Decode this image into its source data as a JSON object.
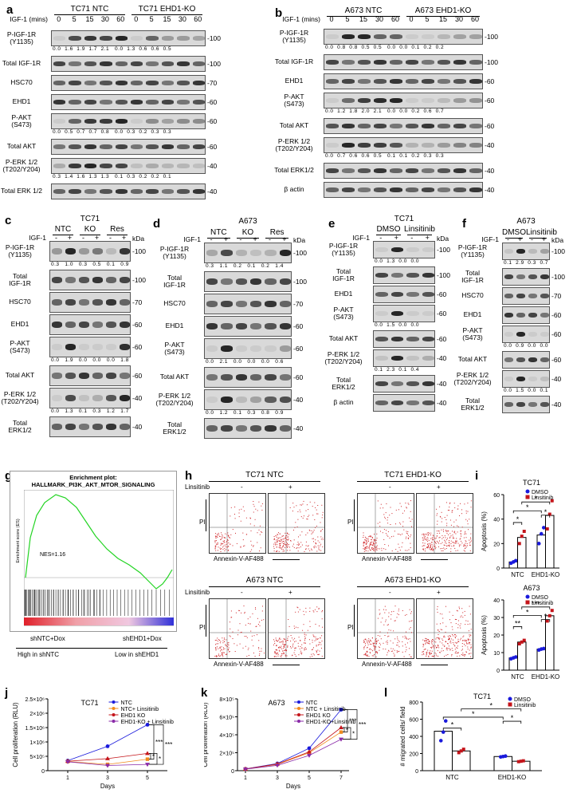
{
  "panel_letters": [
    "a",
    "b",
    "c",
    "d",
    "e",
    "f",
    "g",
    "h",
    "i",
    "j",
    "k",
    "l"
  ],
  "a": {
    "groups": [
      "TC71 NTC",
      "TC71 EHD1-KO"
    ],
    "timelabel": "IGF-1 (mins)",
    "times": [
      "0",
      "5",
      "15",
      "30",
      "60",
      "0",
      "5",
      "15",
      "30",
      "60"
    ],
    "rows": [
      {
        "label": "P-IGF-1R\n(Y1135)",
        "kda": "100",
        "vals": "0.0  1.6  1.9  1.7  2.1   0.0  1.3  0.6  0.6  0.5"
      },
      {
        "label": "Total IGF-1R",
        "kda": "100",
        "vals": ""
      },
      {
        "label": "HSC70",
        "kda": "70",
        "vals": ""
      },
      {
        "label": "EHD1",
        "kda": "60",
        "vals": ""
      },
      {
        "label": "P-AKT\n(S473)",
        "kda": "60",
        "vals": "0.0  0.5  0.7  0.7  0.8   0.0  0.3  0.2  0.3  0.3"
      },
      {
        "label": "Total AKT",
        "kda": "60",
        "vals": ""
      },
      {
        "label": "P-ERK 1/2\n(T202/Y204)",
        "kda": "40",
        "vals": "0.3  1.4  1.6  1.3  1.3   0.1  0.3  0.2  0.2  0.1"
      },
      {
        "label": "Total ERK 1/2",
        "kda": "40",
        "vals": ""
      }
    ]
  },
  "b": {
    "groups": [
      "A673 NTC",
      "A673 EHD1-KO"
    ],
    "timelabel": "IGF-1 (mins)",
    "times": [
      "0",
      "5",
      "15",
      "30",
      "60",
      "0",
      "5",
      "15",
      "30",
      "60"
    ],
    "rows": [
      {
        "label": "P-IGF-1R\n(Y1135)",
        "kda": "100",
        "vals": "0.0  0.8  0.8  0.5  0.5   0.0  0.0  0.1  0.2  0.2"
      },
      {
        "label": "Total IGF-1R",
        "kda": "100",
        "vals": ""
      },
      {
        "label": "EHD1",
        "kda": "60",
        "vals": ""
      },
      {
        "label": "P-AKT\n(S473)",
        "kda": "60",
        "vals": "0.0  1.2  1.8  2.0  2.1   0.0  0.0  0.2  0.6  0.7"
      },
      {
        "label": "Total AKT",
        "kda": "60",
        "vals": ""
      },
      {
        "label": "P-ERK 1/2\n(T202/Y204)",
        "kda": "40",
        "vals": "0.0  0.7  0.6  0.6  0.5   0.1  0.1  0.2  0.3  0.3"
      },
      {
        "label": "Total ERK1/2",
        "kda": "40",
        "vals": ""
      },
      {
        "label": "β actin",
        "kda": "40",
        "vals": ""
      }
    ]
  },
  "c": {
    "title": "TC71",
    "groups": [
      "NTC",
      "KO",
      "Res"
    ],
    "igf": "IGF-1",
    "pm": [
      "-",
      "+",
      "-",
      "+",
      "-",
      "+"
    ],
    "kdaHeader": "kDa",
    "rows": [
      {
        "label": "P-IGF-1R\n(Y1135)",
        "kda": "100",
        "vals": "0.3   1.0   0.3   0.5   0.1   0.9"
      },
      {
        "label": "Total\nIGF-1R",
        "kda": "100",
        "vals": ""
      },
      {
        "label": "HSC70",
        "kda": "70",
        "vals": ""
      },
      {
        "label": "EHD1",
        "kda": "60",
        "vals": ""
      },
      {
        "label": "P-AKT\n(S473)",
        "kda": "60",
        "vals": "0.0   1.9   0.0   0.0   0.0   1.8"
      },
      {
        "label": "Total AKT",
        "kda": "60",
        "vals": ""
      },
      {
        "label": "P-ERK 1/2\n(T202/Y204)",
        "kda": "40",
        "vals": "0.0   1.3   0.1   0.3   1.2   1.7"
      },
      {
        "label": "Total\nERK1/2",
        "kda": "40",
        "vals": ""
      }
    ]
  },
  "d": {
    "title": "A673",
    "groups": [
      "NTC",
      "KO",
      "Res"
    ],
    "igf": "IGF-1",
    "pm": [
      "-",
      "+",
      "-",
      "+",
      "-",
      "+"
    ],
    "kdaHeader": "kDa",
    "rows": [
      {
        "label": "P-IGF-1R\n(Y1135)",
        "kda": "100",
        "vals": "0.3   1.1   0.2   0.1   0.2   1.4"
      },
      {
        "label": "Total\nIGF-1R",
        "kda": "100",
        "vals": ""
      },
      {
        "label": "HSC70",
        "kda": "70",
        "vals": ""
      },
      {
        "label": "EHD1",
        "kda": "60",
        "vals": ""
      },
      {
        "label": "P-AKT\n(S473)",
        "kda": "60",
        "vals": "0.0   2.1   0.0   0.0   0.0   0.6"
      },
      {
        "label": "Total AKT",
        "kda": "60",
        "vals": ""
      },
      {
        "label": "P-ERK 1/2\n(T202/Y204)",
        "kda": "40",
        "vals": "0.0   1.2   0.1   0.3   0.8   0.9"
      },
      {
        "label": "Total\nERK1/2",
        "kda": "40",
        "vals": ""
      }
    ]
  },
  "e": {
    "title": "TC71",
    "groups": [
      "DMSO",
      "Linsitinib"
    ],
    "igf": "IGF-1",
    "pm": [
      "-",
      "+",
      "-",
      "+"
    ],
    "kdaHeader": "kDa",
    "rows": [
      {
        "label": "P-IGF-1R\n(Y1135)",
        "kda": "100",
        "vals": "0.0  1.3  0.0  0.0"
      },
      {
        "label": "Total\nIGF-1R",
        "kda": "100",
        "vals": ""
      },
      {
        "label": "EHD1",
        "kda": "60",
        "vals": ""
      },
      {
        "label": "P-AKT\n(S473)",
        "kda": "60",
        "vals": "0.0  1.5  0.0  0.0"
      },
      {
        "label": "Total AKT",
        "kda": "60",
        "vals": ""
      },
      {
        "label": "P-ERK 1/2\n(T202/Y204)",
        "kda": "40",
        "vals": "0.1  2.3  0.1  0.4"
      },
      {
        "label": "Total\nERK1/2",
        "kda": "40",
        "vals": ""
      },
      {
        "label": "β actin",
        "kda": "40",
        "vals": ""
      }
    ]
  },
  "f": {
    "title": "A673",
    "groups": [
      "DMSO",
      "Linsitinib"
    ],
    "igf": "IGF-1",
    "pm": [
      "-",
      "+",
      "-",
      "+"
    ],
    "kdaHeader": "kDa",
    "rows": [
      {
        "label": "P-IGF-1R\n(Y1135)",
        "kda": "100",
        "vals": "0.1  2.9  0.3  0.7"
      },
      {
        "label": "Total\nIGF-1R",
        "kda": "100",
        "vals": ""
      },
      {
        "label": "HSC70",
        "kda": "70",
        "vals": ""
      },
      {
        "label": "EHD1",
        "kda": "60",
        "vals": ""
      },
      {
        "label": "P-AKT\n(S473)",
        "kda": "60",
        "vals": "0.0  0.9  0.0  0.0"
      },
      {
        "label": "Total AKT",
        "kda": "60",
        "vals": ""
      },
      {
        "label": "P-ERK 1/2\n(T202/Y204)",
        "kda": "40",
        "vals": "0.0  1.5  0.0  0.1"
      },
      {
        "label": "Total\nERK1/2",
        "kda": "40",
        "vals": ""
      }
    ]
  },
  "g": {
    "title": "Enrichment plot:",
    "subtitle": "HALLMARK_PI3K_AKT_MTOR_SIGNALING",
    "ylabel": "Enrichment score (ES)",
    "nes": "NES=1.16",
    "left": "shNTC+Dox",
    "right": "shEHD1+Dox",
    "leftHigh": "High in shNTC",
    "rightLow": "Low in shEHD1"
  },
  "h": {
    "panels": [
      {
        "title": "TC71 NTC"
      },
      {
        "title": "TC71 EHD1-KO"
      },
      {
        "title": "A673 NTC"
      },
      {
        "title": "A673 EHD1-KO"
      }
    ],
    "linsitinib": "Linsitinib",
    "minus": "-",
    "plus": "+",
    "xlabel": "Annexin-V-AF488",
    "ylabel": "PI"
  },
  "chart_data": [
    {
      "id": "i-top",
      "type": "bar",
      "title": "TC71",
      "ylabel": "Apoptosis (%)",
      "categories": [
        "NTC",
        "EHD1-KO"
      ],
      "ylim": [
        0,
        60
      ],
      "yticks": [
        0,
        20,
        40,
        60
      ],
      "series": [
        {
          "name": "DMSO",
          "color": "#1a1adc",
          "values": [
            5,
            27
          ],
          "points": [
            [
              4,
              5,
              6
            ],
            [
              20,
              28,
              33
            ]
          ]
        },
        {
          "name": "Linsitinib",
          "color": "#c4141a",
          "values": [
            25,
            43
          ],
          "points": [
            [
              20,
              26,
              30
            ],
            [
              32,
              44,
              55
            ]
          ]
        }
      ],
      "sig": [
        "*",
        "*",
        "*",
        "*"
      ]
    },
    {
      "id": "i-bottom",
      "type": "bar",
      "title": "A673",
      "ylabel": "Apoptosis (%)",
      "categories": [
        "NTC",
        "EHD1-KO"
      ],
      "ylim": [
        0,
        40
      ],
      "yticks": [
        0,
        10,
        20,
        30,
        40
      ],
      "series": [
        {
          "name": "DMSO",
          "color": "#1a1adc",
          "values": [
            7,
            12
          ],
          "points": [
            [
              6.5,
              7,
              7.5
            ],
            [
              11.5,
              12,
              12.3
            ]
          ]
        },
        {
          "name": "Linsitinib",
          "color": "#c4141a",
          "values": [
            16,
            31
          ],
          "points": [
            [
              15,
              16,
              17
            ],
            [
              28,
              31,
              34
            ]
          ]
        }
      ],
      "sig": [
        "**",
        "*",
        "***",
        "*"
      ]
    },
    {
      "id": "j",
      "type": "line",
      "title": "TC71",
      "xlabel": "Days",
      "ylabel": "Cell proliferation (RLU)",
      "x": [
        1,
        3,
        5
      ],
      "xlim": [
        0,
        6
      ],
      "ylim": [
        0,
        2500000
      ],
      "yticks": [
        "0",
        "5×10⁵",
        "1×10⁶",
        "1.5×10⁶",
        "2×10⁶",
        "2.5×10⁶"
      ],
      "series": [
        {
          "name": "NTC",
          "color": "#1a1adc",
          "marker": "circle",
          "values": [
            350000,
            850000,
            1600000
          ]
        },
        {
          "name": "NTC+ Linsitinib",
          "color": "#f08a1c",
          "marker": "square",
          "values": [
            320000,
            220000,
            400000
          ]
        },
        {
          "name": "EHD1 KO",
          "color": "#c4141a",
          "marker": "triangle",
          "values": [
            330000,
            420000,
            600000
          ]
        },
        {
          "name": "EHD1-KO + Linsitinib",
          "color": "#8a2aa8",
          "marker": "triangle-down",
          "values": [
            310000,
            180000,
            220000
          ]
        }
      ],
      "sig": [
        "***",
        "***",
        "*",
        "*"
      ]
    },
    {
      "id": "k",
      "type": "line",
      "title": "A673",
      "xlabel": "Days",
      "ylabel": "Cell proliferation (RLU)",
      "x": [
        1,
        3,
        5,
        7
      ],
      "xlim": [
        0.5,
        7.5
      ],
      "ylim": [
        0,
        800000
      ],
      "yticks": [
        "0",
        "2×10⁵",
        "4×10⁵",
        "6×10⁵",
        "8×10⁵"
      ],
      "series": [
        {
          "name": "NTC",
          "color": "#1a1adc",
          "marker": "circle",
          "values": [
            20000,
            80000,
            250000,
            680000
          ]
        },
        {
          "name": "NTC + Linsitinib",
          "color": "#f08a1c",
          "marker": "square",
          "values": [
            18000,
            70000,
            200000,
            430000
          ]
        },
        {
          "name": "EHD1 KO",
          "color": "#c4141a",
          "marker": "triangle",
          "values": [
            19000,
            75000,
            210000,
            480000
          ]
        },
        {
          "name": "EHD1-KO+Linsitinib",
          "color": "#8a2aa8",
          "marker": "triangle-down",
          "values": [
            17000,
            60000,
            170000,
            350000
          ]
        }
      ],
      "sig": [
        "***",
        "***",
        "*",
        "*"
      ]
    },
    {
      "id": "l",
      "type": "bar",
      "title": "TC71",
      "ylabel": "# migrated cells/ field",
      "categories": [
        "NTC",
        "EHD1-KO"
      ],
      "ylim": [
        0,
        800
      ],
      "yticks": [
        0,
        200,
        400,
        600,
        800
      ],
      "series": [
        {
          "name": "DMSO",
          "color": "#1a1adc",
          "values": [
            460,
            165
          ],
          "points": [
            [
              350,
              450,
              580
            ],
            [
              160,
              165,
              170
            ]
          ]
        },
        {
          "name": "Linsitinib",
          "color": "#c4141a",
          "values": [
            230,
            110
          ],
          "points": [
            [
              210,
              230,
              250
            ],
            [
              105,
              110,
              115
            ]
          ]
        }
      ],
      "sig": [
        "*",
        "*",
        "*",
        "*"
      ]
    }
  ]
}
